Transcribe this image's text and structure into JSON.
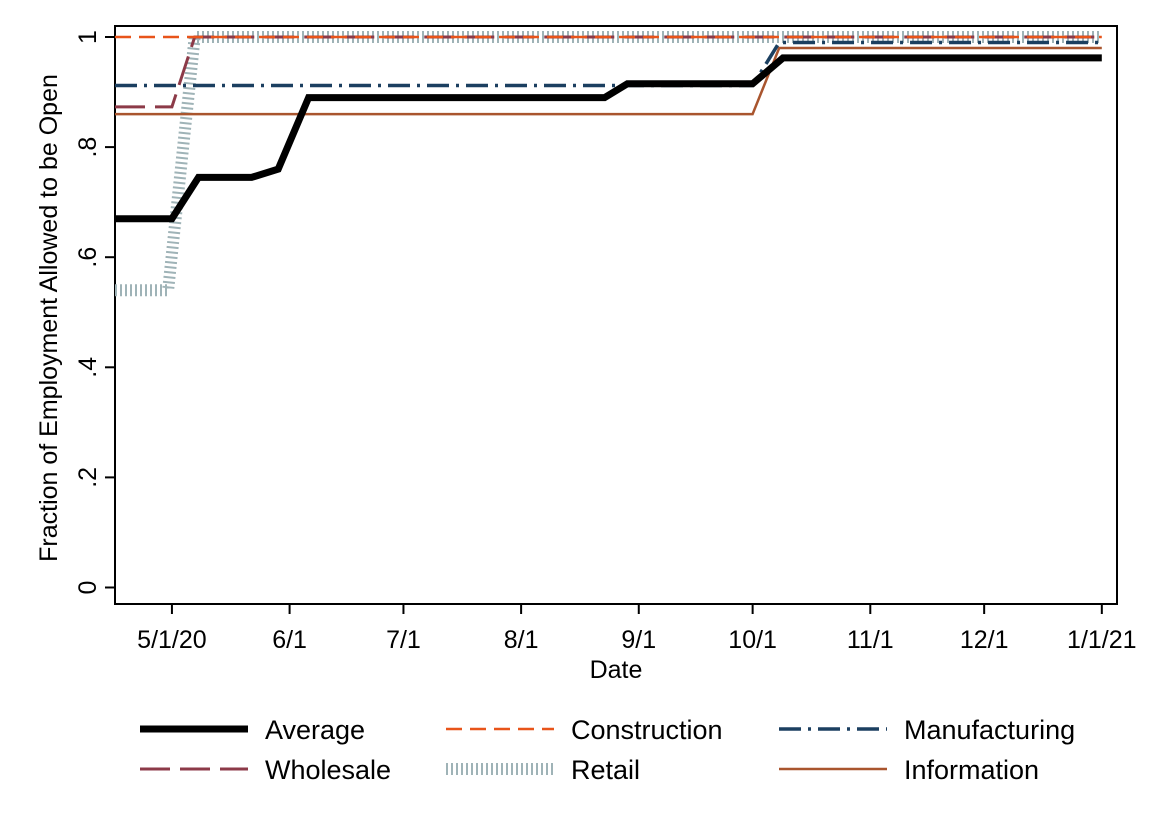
{
  "chart_data": {
    "type": "line",
    "title": "",
    "xlabel": "Date",
    "ylabel": "Fraction of Employment Allowed to be Open",
    "x_ticks": [
      "2020-05-01",
      "2020-06-01",
      "2020-07-01",
      "2020-08-01",
      "2020-09-01",
      "2020-10-01",
      "2020-11-01",
      "2020-12-01",
      "2021-01-01"
    ],
    "x_tick_labels": [
      "5/1/20",
      "6/1",
      "7/1",
      "8/1",
      "9/1",
      "10/1",
      "11/1",
      "12/1",
      "1/1/21"
    ],
    "xlim": [
      "2020-04-16",
      "2021-01-05"
    ],
    "y_ticks": [
      0,
      0.2,
      0.4,
      0.6,
      0.8,
      1
    ],
    "y_tick_labels": [
      "0",
      ".2",
      ".4",
      ".6",
      ".8",
      "1"
    ],
    "ylim": [
      -0.03,
      1.02
    ],
    "grid": false,
    "legend_position": "bottom",
    "series": [
      {
        "name": "Average",
        "color": "#000000",
        "points": [
          [
            "2020-04-16",
            0.67
          ],
          [
            "2020-05-01",
            0.67
          ],
          [
            "2020-05-08",
            0.745
          ],
          [
            "2020-05-22",
            0.745
          ],
          [
            "2020-05-29",
            0.76
          ],
          [
            "2020-06-06",
            0.89
          ],
          [
            "2020-08-23",
            0.89
          ],
          [
            "2020-08-29",
            0.915
          ],
          [
            "2020-10-01",
            0.915
          ],
          [
            "2020-10-09",
            0.962
          ],
          [
            "2021-01-01",
            0.962
          ]
        ]
      },
      {
        "name": "Construction",
        "color": "#e8541a",
        "points": [
          [
            "2020-04-16",
            1.0
          ],
          [
            "2021-01-01",
            1.0
          ]
        ]
      },
      {
        "name": "Manufacturing",
        "color": "#1b3f60",
        "points": [
          [
            "2020-04-16",
            0.912
          ],
          [
            "2020-10-01",
            0.912
          ],
          [
            "2020-10-08",
            0.99
          ],
          [
            "2021-01-01",
            0.99
          ]
        ]
      },
      {
        "name": "Wholesale",
        "color": "#8c3a48",
        "points": [
          [
            "2020-04-16",
            0.873
          ],
          [
            "2020-05-01",
            0.873
          ],
          [
            "2020-05-07",
            1.0
          ],
          [
            "2021-01-01",
            1.0
          ]
        ]
      },
      {
        "name": "Retail",
        "color": "#9fb3b7",
        "points": [
          [
            "2020-04-16",
            0.54
          ],
          [
            "2020-04-30",
            0.54
          ],
          [
            "2020-05-07",
            1.0
          ],
          [
            "2021-01-01",
            1.0
          ]
        ]
      },
      {
        "name": "Information",
        "color": "#a9552e",
        "points": [
          [
            "2020-04-16",
            0.86
          ],
          [
            "2020-10-01",
            0.86
          ],
          [
            "2020-10-08",
            0.98
          ],
          [
            "2021-01-01",
            0.98
          ]
        ]
      }
    ]
  }
}
